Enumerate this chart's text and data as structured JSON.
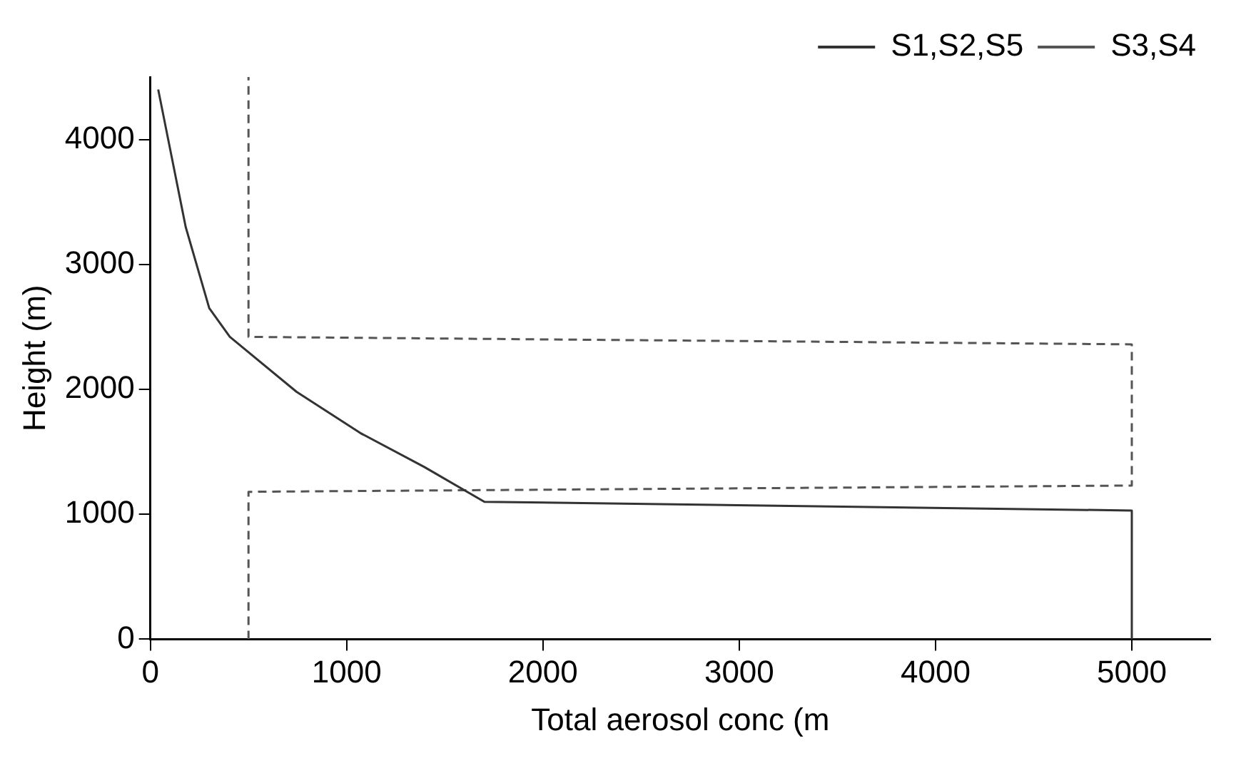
{
  "chart_data": {
    "type": "line",
    "xlabel": "Total aerosol conc (m",
    "ylabel": "Height (m)",
    "xlim": [
      0,
      5400
    ],
    "ylim": [
      0,
      4500
    ],
    "xticks": [
      0,
      1000,
      2000,
      3000,
      4000,
      5000
    ],
    "yticks": [
      0,
      1000,
      2000,
      3000,
      4000
    ],
    "grid": false,
    "legend": "top right",
    "marker": "none",
    "series": [
      {
        "name": "S1,S2,S5",
        "color": "#333333",
        "line_style": "solid",
        "x": [
          40,
          180,
          300,
          405,
          745,
          1070,
          1394,
          1702,
          5000,
          5000
        ],
        "values": [
          4400,
          3300,
          2650,
          2420,
          1980,
          1650,
          1380,
          1100,
          1030,
          0
        ]
      },
      {
        "name": "S3,S4",
        "color": "#555555",
        "line_style": "dashed",
        "x": [
          500,
          500,
          5000,
          5000,
          500,
          500
        ],
        "values": [
          0,
          1180,
          1230,
          2360,
          2420,
          4500
        ]
      }
    ]
  }
}
